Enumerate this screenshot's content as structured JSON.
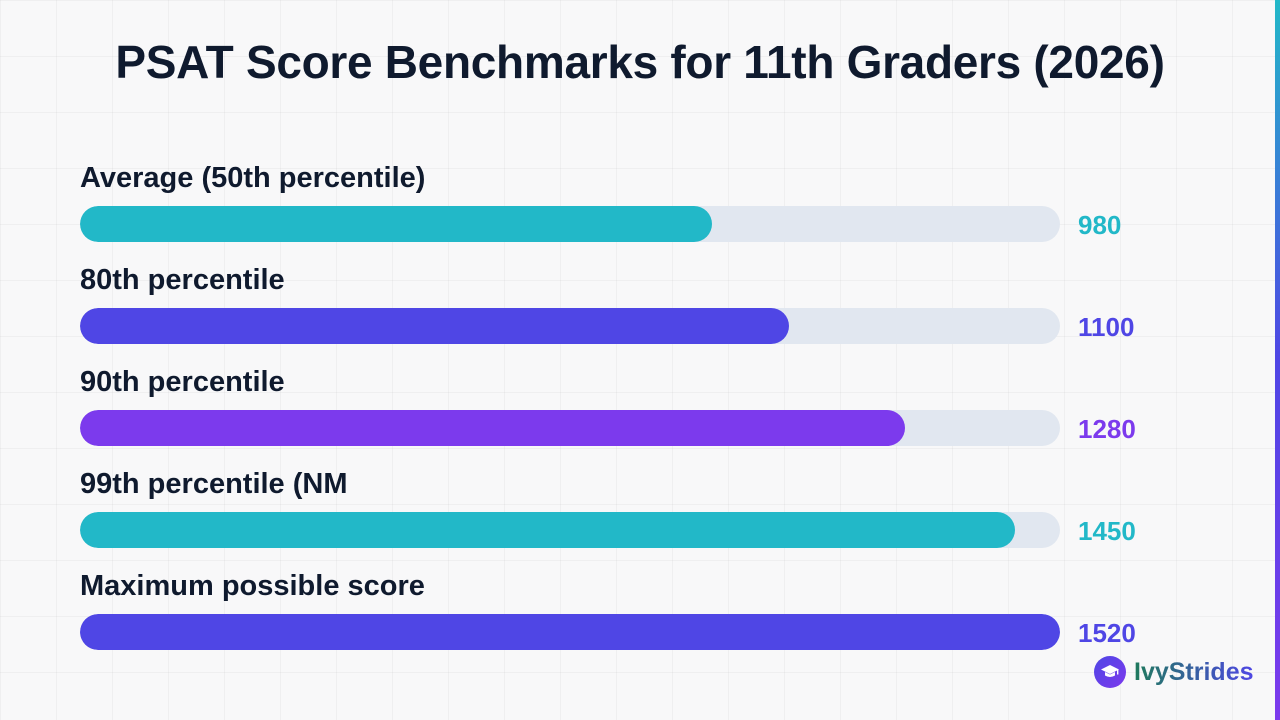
{
  "chart_data": {
    "type": "bar",
    "orientation": "horizontal",
    "title": "PSAT Score Benchmarks for 11th Graders (2026)",
    "xlim": [
      0,
      1520
    ],
    "grid": false,
    "categories": [
      "Average (50th percentile)",
      "80th percentile",
      "90th percentile",
      "99th percentile (NM",
      "Maximum possible score"
    ],
    "values": [
      980,
      1100,
      1280,
      1450,
      1520
    ],
    "value_labels": [
      "980",
      "1100",
      "1280",
      "1450",
      "1520"
    ],
    "colors": [
      "#22b8c8",
      "#4f46e5",
      "#7c3aed",
      "#22b8c8",
      "#4f46e5"
    ],
    "track_color": "#e1e7f0"
  },
  "brand": {
    "name": "IvyStrides",
    "icon": "graduation-cap-icon"
  }
}
